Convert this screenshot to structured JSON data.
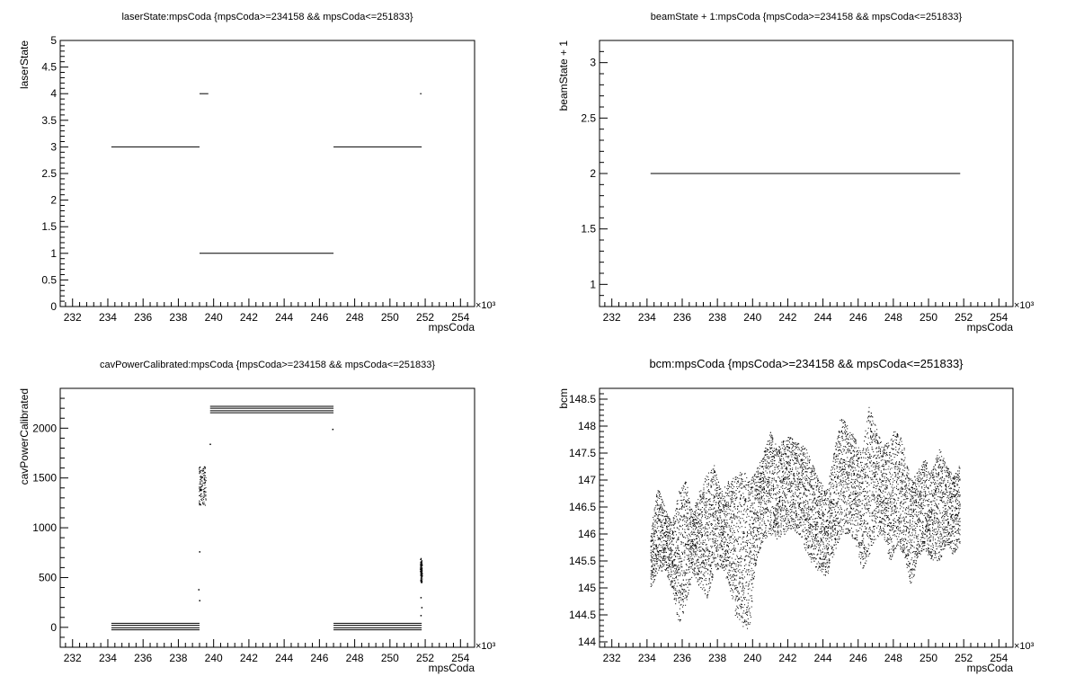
{
  "chart_data": [
    {
      "id": "p1",
      "type": "scatter",
      "title": "laserState:mpsCoda {mpsCoda>=234158 && mpsCoda<=251833}",
      "title_size": "small",
      "xlabel": "mpsCoda",
      "ylabel": "laserState",
      "x_multiplier": "×10³",
      "xlim": [
        231.3,
        254.8
      ],
      "ylim": [
        0,
        5
      ],
      "xticks": [
        232,
        234,
        236,
        238,
        240,
        242,
        244,
        246,
        248,
        250,
        252,
        254
      ],
      "yticks": [
        0,
        0.5,
        1,
        1.5,
        2,
        2.5,
        3,
        3.5,
        4,
        4.5,
        5
      ],
      "ytick_labels": [
        "0",
        "0.5",
        "1",
        "1.5",
        "2",
        "2.5",
        "3",
        "3.5",
        "4",
        "4.5",
        "5"
      ],
      "segments": [
        {
          "x0": 234.2,
          "x1": 239.2,
          "y": 3
        },
        {
          "x0": 239.2,
          "x1": 239.7,
          "y": 4
        },
        {
          "x0": 239.2,
          "x1": 246.8,
          "y": 1
        },
        {
          "x0": 246.8,
          "x1": 251.8,
          "y": 3
        },
        {
          "x0": 251.7,
          "x1": 251.8,
          "y": 4
        }
      ]
    },
    {
      "id": "p2",
      "type": "scatter",
      "title": "beamState + 1:mpsCoda {mpsCoda>=234158 && mpsCoda<=251833}",
      "title_size": "small",
      "xlabel": "mpsCoda",
      "ylabel": "beamState + 1",
      "x_multiplier": "×10³",
      "xlim": [
        231.3,
        254.8
      ],
      "ylim": [
        0.8,
        3.2
      ],
      "xticks": [
        232,
        234,
        236,
        238,
        240,
        242,
        244,
        246,
        248,
        250,
        252,
        254
      ],
      "yticks": [
        1,
        1.5,
        2,
        2.5,
        3
      ],
      "ytick_labels": [
        "1",
        "1.5",
        "2",
        "2.5",
        "3"
      ],
      "segments": [
        {
          "x0": 234.2,
          "x1": 251.8,
          "y": 2
        }
      ]
    },
    {
      "id": "p3",
      "type": "scatter",
      "title": "cavPowerCalibrated:mpsCoda {mpsCoda>=234158 && mpsCoda<=251833}",
      "title_size": "small",
      "xlabel": "mpsCoda",
      "ylabel": "cavPowerCalibrated",
      "x_multiplier": "×10³",
      "xlim": [
        231.3,
        254.8
      ],
      "ylim": [
        -200,
        2400
      ],
      "xticks": [
        232,
        234,
        236,
        238,
        240,
        242,
        244,
        246,
        248,
        250,
        252,
        254
      ],
      "yticks": [
        0,
        500,
        1000,
        1500,
        2000
      ],
      "ytick_labels": [
        "0",
        "500",
        "1000",
        "1500",
        "2000"
      ],
      "segments": [
        {
          "x0": 234.2,
          "x1": 239.2,
          "y": 40
        },
        {
          "x0": 234.2,
          "x1": 239.2,
          "y": 20
        },
        {
          "x0": 234.2,
          "x1": 239.2,
          "y": -5
        },
        {
          "x0": 234.2,
          "x1": 239.2,
          "y": -25
        },
        {
          "x0": 239.8,
          "x1": 246.8,
          "y": 2220
        },
        {
          "x0": 239.8,
          "x1": 246.8,
          "y": 2200
        },
        {
          "x0": 239.8,
          "x1": 246.8,
          "y": 2175
        },
        {
          "x0": 239.8,
          "x1": 246.8,
          "y": 2155
        },
        {
          "x0": 246.8,
          "x1": 251.8,
          "y": 40
        },
        {
          "x0": 246.8,
          "x1": 251.8,
          "y": 20
        },
        {
          "x0": 246.8,
          "x1": 251.8,
          "y": -5
        },
        {
          "x0": 246.8,
          "x1": 251.8,
          "y": -25
        }
      ],
      "clusters": [
        {
          "x0": 239.15,
          "x1": 239.55,
          "y0": 1230,
          "y1": 1620
        },
        {
          "x0": 251.7,
          "x1": 251.82,
          "y0": 450,
          "y1": 700
        }
      ],
      "points": [
        {
          "x": 239.8,
          "y": 1840
        },
        {
          "x": 239.2,
          "y": 760
        },
        {
          "x": 239.15,
          "y": 380
        },
        {
          "x": 239.2,
          "y": 270
        },
        {
          "x": 246.75,
          "y": 1990
        },
        {
          "x": 251.75,
          "y": 300
        },
        {
          "x": 251.8,
          "y": 200
        },
        {
          "x": 251.75,
          "y": 120
        }
      ]
    },
    {
      "id": "p4",
      "type": "scatter",
      "title": "bcm:mpsCoda {mpsCoda>=234158 && mpsCoda<=251833}",
      "title_size": "large",
      "xlabel": "mpsCoda",
      "ylabel": "bcm",
      "x_multiplier": "×10³",
      "xlim": [
        231.3,
        254.8
      ],
      "ylim": [
        143.9,
        148.7
      ],
      "xticks": [
        232,
        234,
        236,
        238,
        240,
        242,
        244,
        246,
        248,
        250,
        252,
        254
      ],
      "yticks": [
        144,
        144.5,
        145,
        145.5,
        146,
        146.5,
        147,
        147.5,
        148,
        148.5
      ],
      "ytick_labels": [
        "144",
        "144.5",
        "145",
        "145.5",
        "146",
        "146.5",
        "147",
        "147.5",
        "148",
        "148.5"
      ],
      "band_x": [
        234.2,
        234.6,
        235.0,
        235.4,
        235.8,
        236.2,
        236.6,
        237.0,
        237.4,
        237.8,
        238.2,
        238.6,
        239.0,
        239.4,
        239.8,
        240.2,
        240.6,
        241.0,
        241.4,
        241.8,
        242.2,
        242.6,
        243.0,
        243.4,
        243.8,
        244.2,
        244.6,
        245.0,
        245.4,
        245.8,
        246.2,
        246.6,
        247.0,
        247.4,
        247.8,
        248.2,
        248.6,
        249.0,
        249.4,
        249.8,
        250.2,
        250.6,
        251.0,
        251.4,
        251.8
      ],
      "band_min": [
        145.0,
        145.3,
        145.3,
        145.0,
        144.3,
        144.7,
        145.3,
        145.0,
        144.8,
        145.3,
        145.4,
        145.1,
        144.5,
        144.3,
        144.2,
        145.5,
        145.9,
        146.0,
        145.9,
        146.0,
        146.1,
        146.0,
        145.7,
        145.4,
        145.3,
        145.2,
        145.6,
        146.0,
        146.0,
        145.9,
        145.3,
        145.6,
        145.9,
        146.0,
        145.5,
        145.8,
        145.6,
        145.0,
        145.6,
        145.7,
        145.5,
        145.5,
        145.8,
        145.6,
        145.8
      ],
      "band_max": [
        146.1,
        146.9,
        146.5,
        146.2,
        146.8,
        147.0,
        146.4,
        146.9,
        147.1,
        147.3,
        146.8,
        147.0,
        147.1,
        147.3,
        147.0,
        147.2,
        147.5,
        147.9,
        147.6,
        147.8,
        147.8,
        147.7,
        147.6,
        147.3,
        147.0,
        146.8,
        147.5,
        148.2,
        148.0,
        147.8,
        147.5,
        148.4,
        148.0,
        147.6,
        147.8,
        148.0,
        147.6,
        147.0,
        147.2,
        147.4,
        147.2,
        147.6,
        147.3,
        147.1,
        147.3
      ]
    }
  ]
}
